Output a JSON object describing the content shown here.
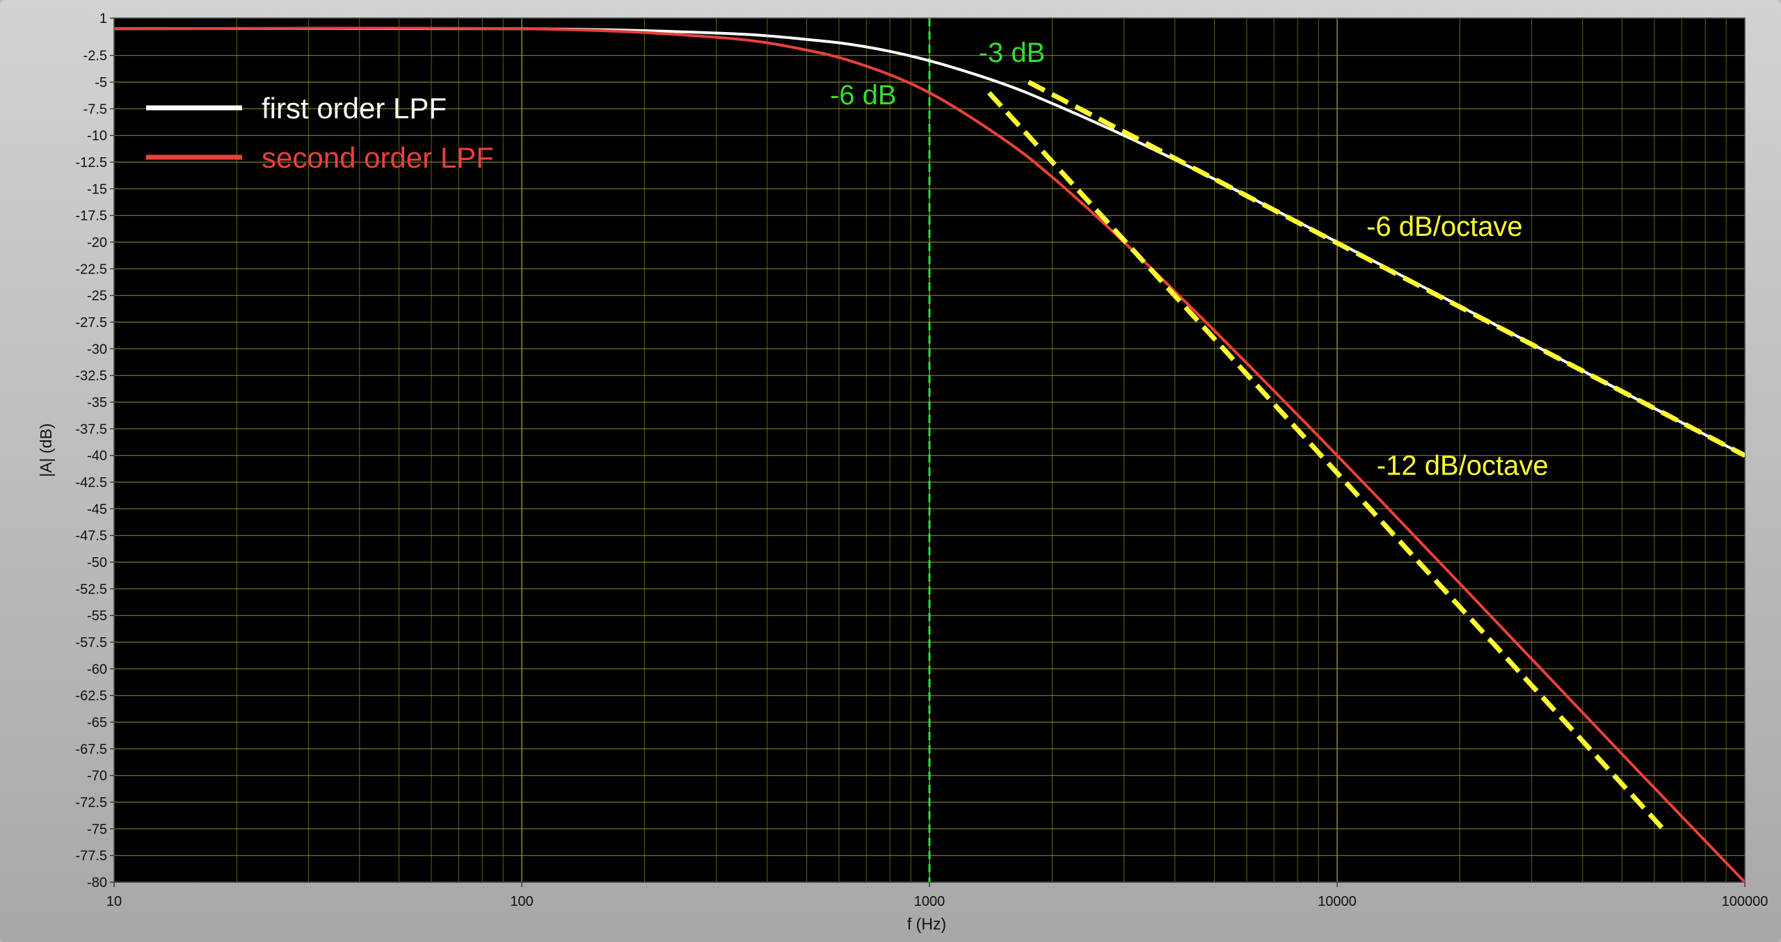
{
  "chart_data": {
    "type": "line",
    "xlabel": "f (Hz)",
    "ylabel": "|A| (dB)",
    "xscale": "log",
    "xlim": [
      10,
      100000
    ],
    "ylim": [
      -80,
      1
    ],
    "x_tick_labels": [
      "10",
      "100",
      "1000",
      "10000",
      "100000"
    ],
    "y_tick_labels": [
      "1",
      "-2.5",
      "-5",
      "-7.5",
      "-10",
      "-12.5",
      "-15",
      "-17.5",
      "-20",
      "-22.5",
      "-25",
      "-27.5",
      "-30",
      "-32.5",
      "-35",
      "-37.5",
      "-40",
      "-42.5",
      "-45",
      "-47.5",
      "-50",
      "-52.5",
      "-55",
      "-57.5",
      "-60",
      "-62.5",
      "-65",
      "-67.5",
      "-70",
      "-72.5",
      "-75",
      "-77.5",
      "-80"
    ],
    "grid": true,
    "background_color": "#000000",
    "grid_color": "#8f8f1a",
    "legend_position": "top-left",
    "series": [
      {
        "name": "first order LPF",
        "color": "#ffffff",
        "x": [
          10,
          100,
          300,
          500,
          700,
          1000,
          1500,
          2000,
          3000,
          5000,
          10000,
          20000,
          50000,
          100000
        ],
        "y": [
          0,
          0,
          -0.4,
          -1.0,
          -1.7,
          -3.0,
          -5.1,
          -7.0,
          -10.0,
          -14.1,
          -20.0,
          -26.0,
          -34.0,
          -40.0
        ]
      },
      {
        "name": "second order LPF",
        "color": "#e8413a",
        "x": [
          10,
          100,
          300,
          500,
          700,
          1000,
          1500,
          2000,
          3000,
          5000,
          10000,
          20000,
          50000,
          100000
        ],
        "y": [
          0,
          0,
          -0.8,
          -2.0,
          -3.5,
          -6.0,
          -10.2,
          -13.9,
          -20.0,
          -28.3,
          -40.0,
          -52.0,
          -68.0,
          -80.0
        ]
      }
    ],
    "asymptotes": [
      {
        "color": "#ffff33",
        "x": [
          1750,
          100000
        ],
        "y": [
          -5,
          -40
        ]
      },
      {
        "color": "#ffff33",
        "x": [
          1400,
          63000
        ],
        "y": [
          -6,
          -75
        ]
      }
    ],
    "cutoff_line": {
      "x": 1000,
      "color": "#33dd33"
    },
    "annotations": [
      {
        "text": "-3 dB",
        "color": "#33dd33",
        "x": 1320,
        "y": -3.1
      },
      {
        "text": "-6 dB",
        "color": "#33dd33",
        "x": 570,
        "y": -7.1
      },
      {
        "text": "-6 dB/octave",
        "color": "#ffff33",
        "x": 11800,
        "y": -19.4
      },
      {
        "text": "-12 dB/octave",
        "color": "#ffff33",
        "x": 12500,
        "y": -41.8
      }
    ]
  }
}
